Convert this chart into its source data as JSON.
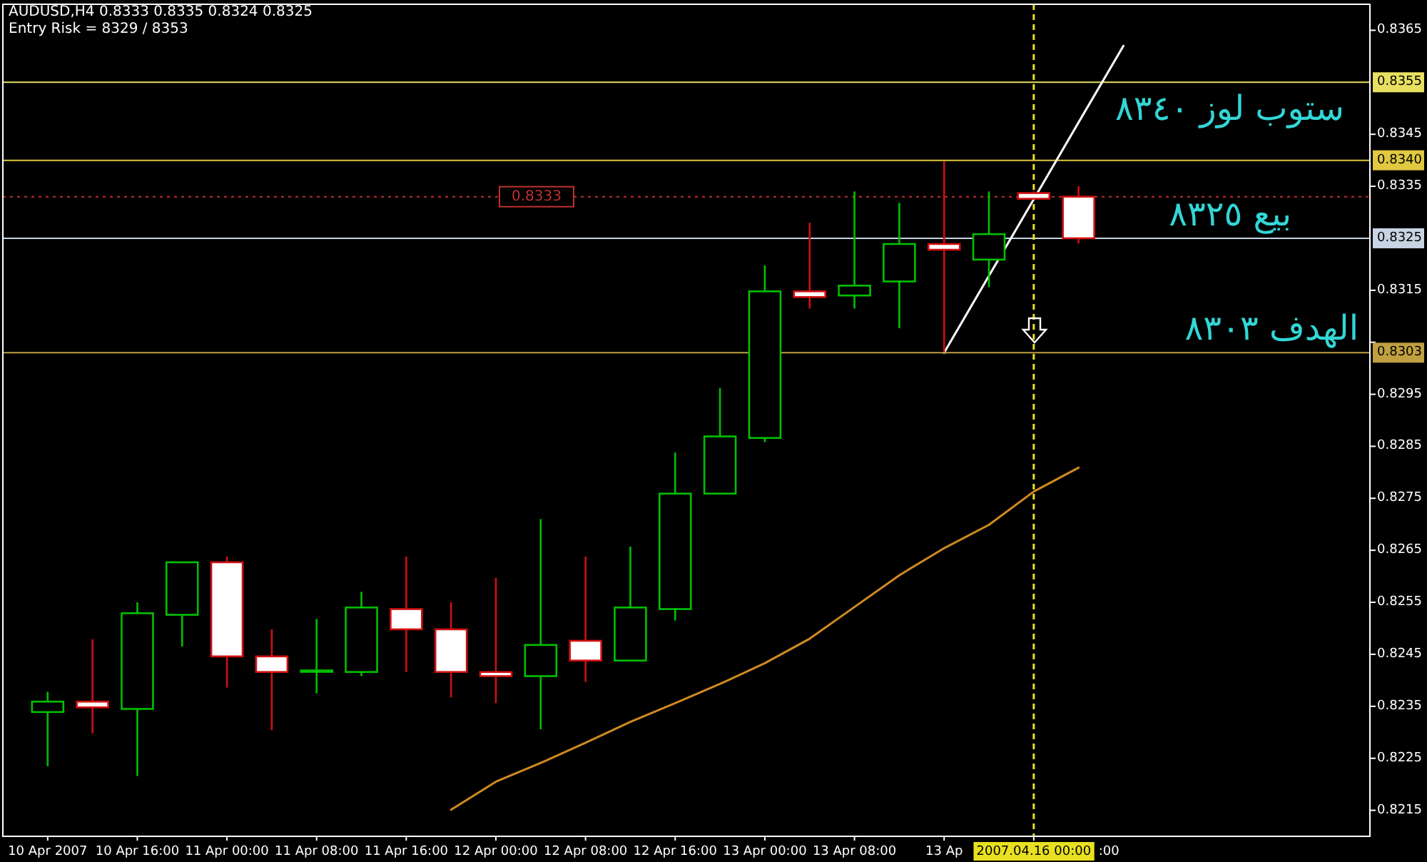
{
  "chart_data": {
    "type": "candlestick",
    "title": "AUDUSD,H4  0.8333 0.8335 0.8324 0.8325",
    "subtitle": "Entry Risk = 8329 / 8353",
    "categories": [
      "10 Apr 2007",
      null,
      "10 Apr 16:00",
      null,
      "11 Apr 00:00",
      null,
      "11 Apr 08:00",
      null,
      "11 Apr 16:00",
      null,
      "12 Apr 00:00",
      null,
      "12 Apr 08:00",
      null,
      "12 Apr 16:00",
      null,
      "13 Apr 00:00",
      null,
      "13 Apr 08:00",
      null,
      "13 Ap",
      null,
      "2007.04.16 00:00",
      null,
      null,
      null,
      null,
      null,
      null,
      null,
      null
    ],
    "ohlc": [
      [
        0.82339,
        0.82378,
        0.82235,
        0.82359
      ],
      [
        0.82359,
        0.82479,
        0.82298,
        0.82348
      ],
      [
        0.82345,
        0.8255,
        0.82216,
        0.82529
      ],
      [
        0.82526,
        0.82627,
        0.82465,
        0.82627
      ],
      [
        0.82627,
        0.82638,
        0.82386,
        0.82446
      ],
      [
        0.82446,
        0.82498,
        0.82304,
        0.82416
      ],
      [
        0.82419,
        0.82518,
        0.82375,
        0.82419
      ],
      [
        0.82416,
        0.8257,
        0.82408,
        0.8254
      ],
      [
        0.82537,
        0.82638,
        0.82416,
        0.82498
      ],
      [
        0.82498,
        0.8255,
        0.82367,
        0.82416
      ],
      [
        0.82416,
        0.82597,
        0.82356,
        0.82408
      ],
      [
        0.82408,
        0.8271,
        0.82306,
        0.82468
      ],
      [
        0.82476,
        0.82638,
        0.82397,
        0.82438
      ],
      [
        0.82438,
        0.82657,
        0.82438,
        0.8254
      ],
      [
        0.82537,
        0.82838,
        0.82515,
        0.82759
      ],
      [
        0.82759,
        0.82962,
        0.82759,
        0.82869
      ],
      [
        0.82866,
        0.83198,
        0.82858,
        0.83148
      ],
      [
        0.83148,
        0.8328,
        0.83115,
        0.83137
      ],
      [
        0.8314,
        0.8334,
        0.83115,
        0.83159
      ],
      [
        0.83167,
        0.83318,
        0.83077,
        0.83239
      ],
      [
        0.83239,
        0.83398,
        0.8303,
        0.83228
      ],
      [
        0.83209,
        0.8334,
        0.83156,
        0.83258
      ],
      [
        0.83337,
        0.8334,
        0.83326,
        0.83326
      ],
      [
        0.8333,
        0.8335,
        0.8324,
        0.8325
      ],
      null,
      null,
      null,
      null,
      null,
      null,
      null
    ],
    "colors": [
      "#00c000",
      "#d01010",
      "#00c000",
      "#00c000",
      "#d01010",
      "#d01010",
      "#00c000",
      "#00c000",
      "#d01010",
      "#d01010",
      "#d01010",
      "#00c000",
      "#d01010",
      "#00c000",
      "#00c000",
      "#00c000",
      "#00c000",
      "#d01010",
      "#00c000",
      "#00c000",
      "#d01010",
      "#00c000",
      "#d01010",
      "#d01010",
      null,
      null,
      null,
      null,
      null,
      null,
      null
    ],
    "series": [
      {
        "type": "line",
        "color": "#d08a20",
        "values": [
          null,
          null,
          null,
          null,
          null,
          null,
          null,
          null,
          null,
          0.82151,
          0.82205,
          0.82241,
          0.8228,
          0.8232,
          0.82356,
          0.82393,
          0.82433,
          0.8248,
          0.82541,
          0.82602,
          0.82654,
          0.82699,
          0.82763,
          0.82809,
          null,
          null,
          null,
          null,
          null,
          null,
          null
        ]
      },
      {
        "type": "line",
        "color": "#ffffff",
        "values": [
          null,
          null,
          null,
          null,
          null,
          null,
          null,
          null,
          null,
          null,
          null,
          null,
          null,
          null,
          null,
          null,
          null,
          null,
          null,
          null,
          0.8303,
          0.83178,
          0.83325,
          0.83473,
          0.8362,
          null,
          null,
          null,
          null,
          null,
          null
        ]
      }
    ],
    "ref_lines": [
      {
        "axis": "y",
        "value": 0.8355,
        "label": "0.8355",
        "color": "#e8e060",
        "line_style": "solid"
      },
      {
        "axis": "y",
        "value": 0.834,
        "label": "0.8340",
        "color": "#e0c840",
        "line_style": "solid"
      },
      {
        "axis": "y",
        "value": 0.8325,
        "label": "0.8325",
        "color": "#c8d4e4",
        "line_style": "solid"
      },
      {
        "axis": "y",
        "value": 0.8303,
        "label": "0.8303",
        "color": "#c0a040",
        "line_style": "solid"
      },
      {
        "axis": "y",
        "value": 0.8333,
        "label": "0.8333",
        "color": "#c03030",
        "line_style": "dotted"
      },
      {
        "axis": "x",
        "value": "2007.04.16 00:00",
        "color": "#e8e020",
        "line_style": "dashed"
      }
    ],
    "annotations": [
      "ستوب لوز ٨٣٤٠",
      "بيع ٨٣٢٥",
      "الهدف ٨٣٠٣",
      ":00"
    ],
    "ylim": [
      0.821,
      0.837
    ],
    "yticks": [
      0.8365,
      0.8345,
      0.8335,
      0.8315,
      {
        "value": 0.8305,
        "label": null
      },
      0.8295,
      0.8285,
      0.8275,
      0.8265,
      0.8255,
      0.8245,
      0.8235,
      0.8225,
      0.8215
    ],
    "grid": false
  }
}
